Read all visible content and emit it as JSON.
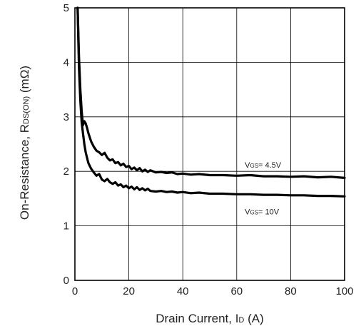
{
  "chart_data": {
    "type": "line",
    "xlabel": {
      "main": "Drain Current, I",
      "sub": "D",
      "unit": " (A)"
    },
    "ylabel": {
      "main": "On-Resistance, R",
      "sub": "DS(ON)",
      "unit": " (mΩ)"
    },
    "xlim": [
      0,
      100
    ],
    "ylim": [
      0,
      5
    ],
    "x_ticks": [
      "0",
      "20",
      "40",
      "60",
      "80",
      "100"
    ],
    "y_ticks": [
      "0",
      "1",
      "2",
      "3",
      "4",
      "5"
    ],
    "grid": true,
    "series": [
      {
        "name": {
          "main": "V",
          "sub": "GS",
          "value": "= 4.5V"
        },
        "label_at": [
          63,
          2.12
        ],
        "x": [
          1.0,
          1.5,
          2.0,
          2.5,
          3.0,
          3.5,
          4.0,
          4.5,
          5.0,
          6.0,
          7.0,
          8.0,
          9.0,
          10.0,
          11.0,
          12.0,
          13.0,
          14.0,
          15.0,
          16.0,
          17.0,
          18.0,
          19.0,
          20.0,
          21.0,
          22.0,
          23.0,
          24.0,
          25.0,
          26.0,
          27.0,
          28.0,
          30.0,
          32.0,
          34.0,
          36.0,
          38.0,
          40.0,
          43.0,
          46.0,
          50.0,
          55.0,
          60.0,
          65.0,
          70.0,
          75.0,
          80.0,
          85.0,
          90.0,
          95.0,
          100.0
        ],
        "y": [
          5.0,
          4.1,
          3.5,
          3.1,
          2.85,
          2.92,
          2.88,
          2.8,
          2.7,
          2.55,
          2.45,
          2.38,
          2.35,
          2.3,
          2.34,
          2.25,
          2.2,
          2.22,
          2.15,
          2.17,
          2.11,
          2.14,
          2.08,
          2.1,
          2.04,
          2.07,
          2.02,
          2.06,
          2.0,
          2.03,
          1.99,
          2.02,
          1.98,
          1.99,
          1.97,
          1.98,
          1.95,
          1.96,
          1.94,
          1.95,
          1.93,
          1.93,
          1.92,
          1.93,
          1.91,
          1.91,
          1.9,
          1.91,
          1.89,
          1.9,
          1.88
        ]
      },
      {
        "name": {
          "main": "V",
          "sub": "GS",
          "value": "= 10V"
        },
        "label_at": [
          63,
          1.26
        ],
        "x": [
          1.0,
          1.5,
          2.0,
          2.5,
          3.0,
          3.5,
          4.0,
          4.5,
          5.0,
          6.0,
          7.0,
          8.0,
          9.0,
          10.0,
          11.0,
          12.0,
          13.0,
          14.0,
          15.0,
          16.0,
          17.0,
          18.0,
          19.0,
          20.0,
          21.0,
          22.0,
          23.0,
          24.0,
          25.0,
          26.0,
          27.0,
          28.0,
          30.0,
          32.0,
          34.0,
          36.0,
          38.0,
          40.0,
          43.0,
          46.0,
          50.0,
          55.0,
          60.0,
          65.0,
          70.0,
          75.0,
          80.0,
          85.0,
          90.0,
          95.0,
          100.0
        ],
        "y": [
          5.0,
          3.9,
          3.3,
          2.9,
          2.7,
          2.5,
          2.35,
          2.25,
          2.15,
          2.05,
          1.98,
          1.92,
          1.95,
          1.85,
          1.82,
          1.86,
          1.8,
          1.77,
          1.8,
          1.74,
          1.76,
          1.71,
          1.74,
          1.69,
          1.72,
          1.67,
          1.71,
          1.66,
          1.69,
          1.65,
          1.68,
          1.64,
          1.63,
          1.64,
          1.62,
          1.63,
          1.61,
          1.62,
          1.6,
          1.61,
          1.59,
          1.59,
          1.58,
          1.58,
          1.57,
          1.57,
          1.56,
          1.56,
          1.55,
          1.55,
          1.54
        ]
      }
    ]
  }
}
